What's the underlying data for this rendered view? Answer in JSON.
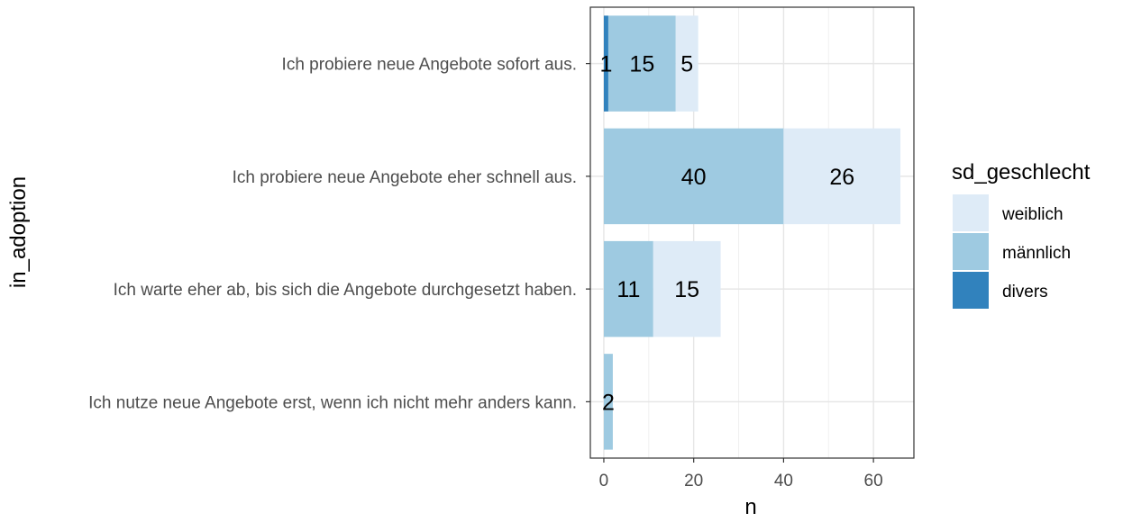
{
  "chart_data": {
    "type": "bar",
    "orientation": "horizontal",
    "stacked": true,
    "categories": [
      "Ich probiere neue Angebote sofort aus.",
      "Ich probiere neue Angebote eher schnell aus.",
      "Ich warte eher ab, bis sich die Angebote durchgesetzt haben.",
      "Ich nutze neue Angebote erst, wenn ich nicht mehr anders kann."
    ],
    "series": [
      {
        "name": "divers",
        "color": "#3182bd",
        "values": [
          1,
          0,
          0,
          0
        ]
      },
      {
        "name": "männlich",
        "color": "#9ecae1",
        "values": [
          15,
          40,
          11,
          2
        ]
      },
      {
        "name": "weiblich",
        "color": "#deebf7",
        "values": [
          5,
          26,
          15,
          0
        ]
      }
    ],
    "xlabel": "n",
    "ylabel": "in_adoption",
    "xlim": [
      -3,
      69
    ],
    "xticks": [
      0,
      20,
      40,
      60
    ],
    "grid": true,
    "legend": {
      "title": "sd_geschlecht",
      "position": "right",
      "entries": [
        {
          "label": "weiblich",
          "color": "#deebf7"
        },
        {
          "label": "männlich",
          "color": "#9ecae1"
        },
        {
          "label": "divers",
          "color": "#3182bd"
        }
      ]
    }
  }
}
